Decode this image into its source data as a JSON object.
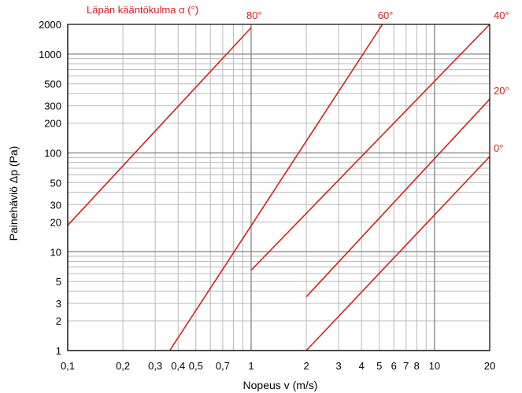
{
  "chart_data": {
    "type": "line",
    "title": "Läpän kääntökulma α (°)",
    "xlabel": "Nopeus v (m/s)",
    "ylabel": "Painehäviö Δp (Pa)",
    "x_scale": "log",
    "y_scale": "log",
    "xlim": [
      0.1,
      20
    ],
    "ylim": [
      1,
      2000
    ],
    "grid": true,
    "x_major_ticks": [
      0.1,
      1,
      10
    ],
    "x_minor_ticks": [
      0.2,
      0.3,
      0.4,
      0.5,
      0.6,
      0.7,
      0.8,
      0.9,
      2,
      3,
      4,
      5,
      6,
      7,
      8,
      9,
      20
    ],
    "y_major_ticks": [
      1,
      10,
      100,
      1000
    ],
    "y_minor_ticks": [
      2,
      3,
      4,
      5,
      6,
      7,
      8,
      9,
      20,
      30,
      40,
      50,
      60,
      70,
      80,
      90,
      200,
      300,
      400,
      500,
      600,
      700,
      800,
      900,
      2000
    ],
    "x_tick_labels": [
      {
        "v": 0.1,
        "t": "0,1"
      },
      {
        "v": 0.2,
        "t": "0,2"
      },
      {
        "v": 0.3,
        "t": "0,3"
      },
      {
        "v": 0.4,
        "t": "0,4"
      },
      {
        "v": 0.5,
        "t": "0,5"
      },
      {
        "v": 0.7,
        "t": "0,7"
      },
      {
        "v": 1,
        "t": "1"
      },
      {
        "v": 2,
        "t": "2"
      },
      {
        "v": 3,
        "t": "3"
      },
      {
        "v": 4,
        "t": "4"
      },
      {
        "v": 5,
        "t": "5"
      },
      {
        "v": 6,
        "t": "6"
      },
      {
        "v": 7,
        "t": "7"
      },
      {
        "v": 8,
        "t": "8"
      },
      {
        "v": 10,
        "t": "10"
      },
      {
        "v": 20,
        "t": "20"
      }
    ],
    "y_tick_labels": [
      {
        "v": 1,
        "t": "1"
      },
      {
        "v": 2,
        "t": "2"
      },
      {
        "v": 3,
        "t": "3"
      },
      {
        "v": 5,
        "t": "5"
      },
      {
        "v": 10,
        "t": "10"
      },
      {
        "v": 20,
        "t": "20"
      },
      {
        "v": 30,
        "t": "30"
      },
      {
        "v": 50,
        "t": "50"
      },
      {
        "v": 100,
        "t": "100"
      },
      {
        "v": 200,
        "t": "200"
      },
      {
        "v": 300,
        "t": "300"
      },
      {
        "v": 500,
        "t": "500"
      },
      {
        "v": 1000,
        "t": "1000"
      },
      {
        "v": 2000,
        "t": "2000"
      }
    ],
    "series": [
      {
        "name": "80°",
        "points": [
          [
            0.1,
            18.5
          ],
          [
            1,
            1850
          ]
        ]
      },
      {
        "name": "60°",
        "points": [
          [
            0.36,
            1
          ],
          [
            5.2,
            2000
          ]
        ]
      },
      {
        "name": "40°",
        "points": [
          [
            1,
            6.5
          ],
          [
            20,
            2000
          ]
        ]
      },
      {
        "name": "20°",
        "points": [
          [
            2,
            3.5
          ],
          [
            20,
            350
          ]
        ]
      },
      {
        "name": "0°",
        "points": [
          [
            2,
            1
          ],
          [
            20,
            92
          ]
        ]
      }
    ],
    "colors": {
      "series": "#d42020",
      "grid_major": "#8a8a8a",
      "grid_minor": "#b9b9b9",
      "frame": "#000000"
    }
  }
}
